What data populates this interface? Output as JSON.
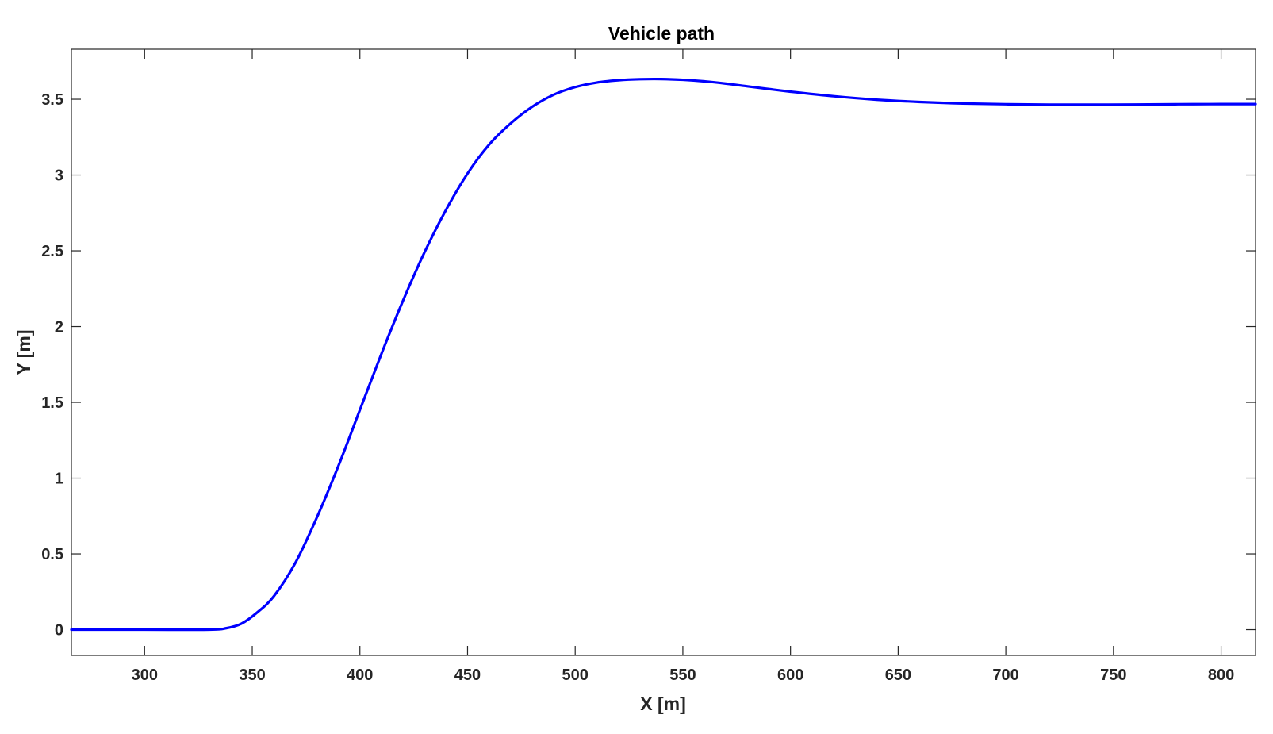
{
  "chart_data": {
    "type": "line",
    "title": "Vehicle path",
    "xlabel": "X [m]",
    "ylabel": "Y [m]",
    "xlim": [
      266,
      816
    ],
    "ylim": [
      -0.17,
      3.83
    ],
    "xticks": [
      300,
      350,
      400,
      450,
      500,
      550,
      600,
      650,
      700,
      750,
      800
    ],
    "yticks": [
      0,
      0.5,
      1,
      1.5,
      2,
      2.5,
      3,
      3.5
    ],
    "grid": false,
    "box": true,
    "series": [
      {
        "color": "#0000ff",
        "x": [
          266,
          300,
          330,
          338,
          345,
          352,
          360,
          370,
          380,
          390,
          400,
          410,
          420,
          430,
          440,
          450,
          460,
          470,
          480,
          490,
          500,
          510,
          520,
          530,
          540,
          550,
          560,
          570,
          580,
          590,
          600,
          620,
          640,
          660,
          680,
          700,
          720,
          740,
          760,
          780,
          800,
          816
        ],
        "y": [
          0,
          0,
          0,
          0.01,
          0.04,
          0.11,
          0.22,
          0.44,
          0.74,
          1.08,
          1.45,
          1.82,
          2.17,
          2.49,
          2.77,
          3.01,
          3.2,
          3.34,
          3.45,
          3.53,
          3.58,
          3.61,
          3.625,
          3.632,
          3.633,
          3.628,
          3.618,
          3.603,
          3.585,
          3.567,
          3.55,
          3.52,
          3.497,
          3.482,
          3.472,
          3.467,
          3.464,
          3.464,
          3.465,
          3.467,
          3.468,
          3.468
        ]
      }
    ]
  }
}
